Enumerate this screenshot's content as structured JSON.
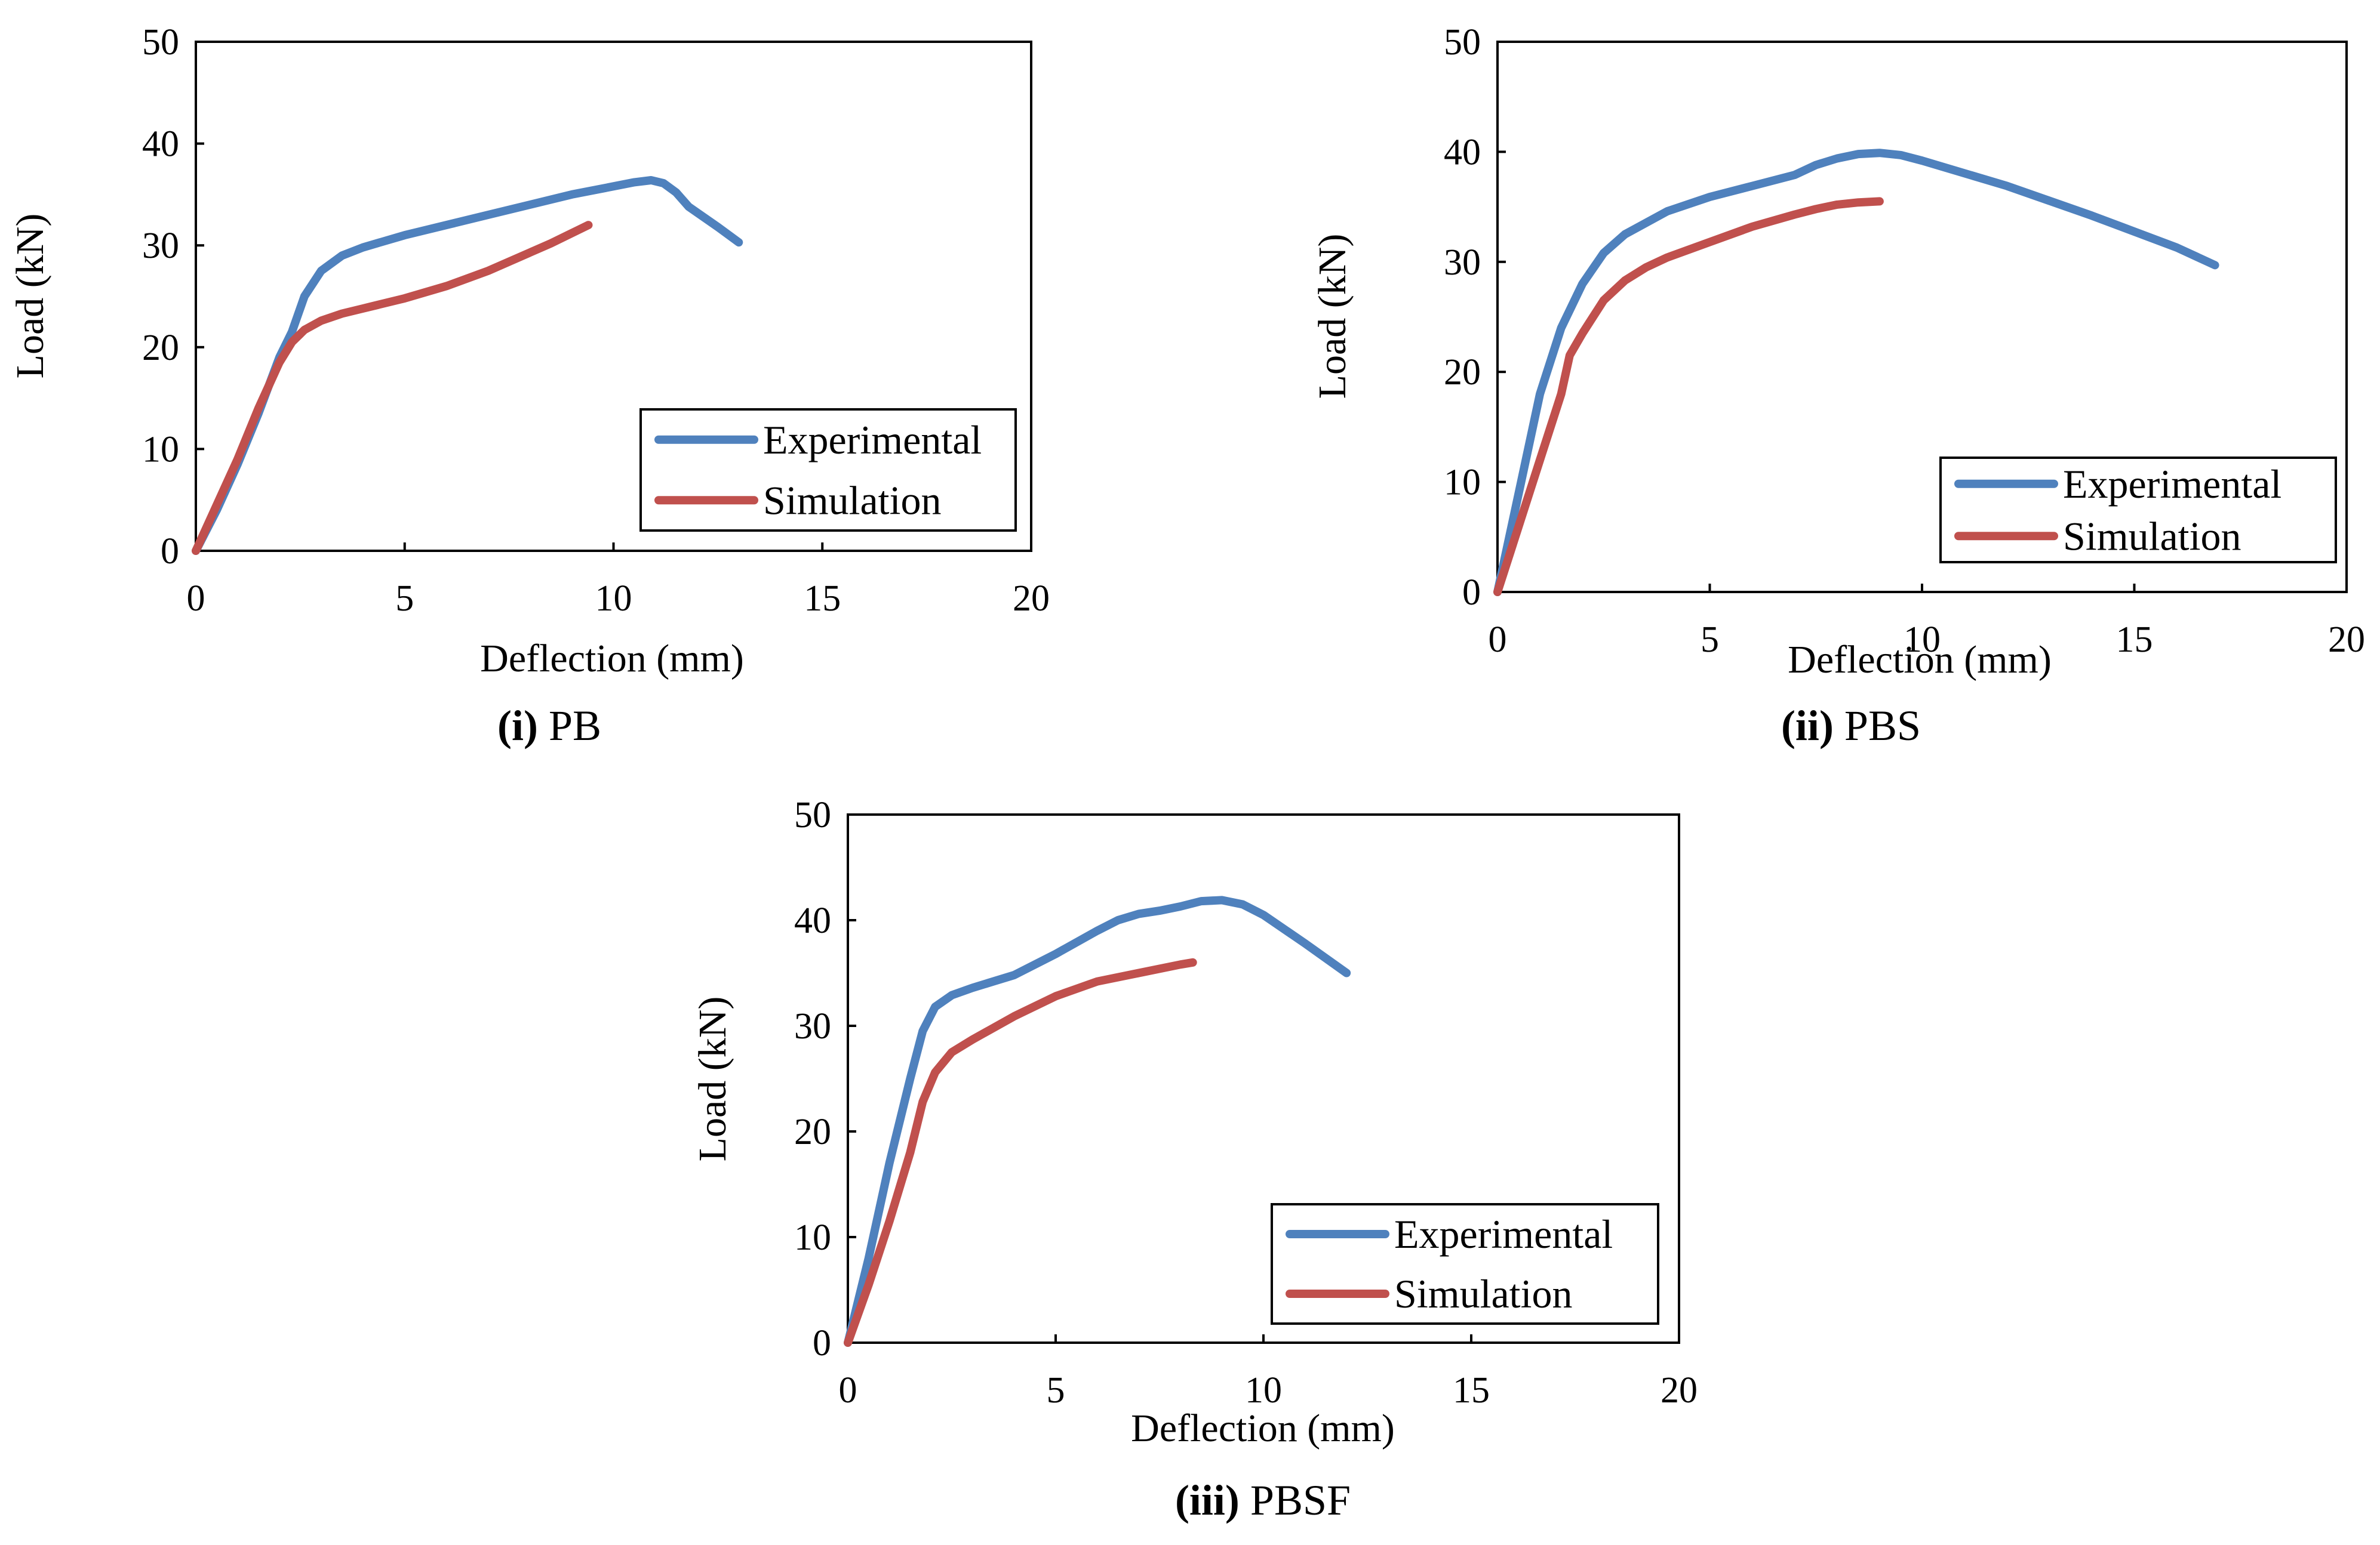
{
  "chart_data": [
    {
      "type": "line",
      "caption_label": "(i)",
      "caption_text": "PB",
      "xlabel": "Deflection (mm)",
      "ylabel": "Load (kN)",
      "xlim": [
        0,
        20
      ],
      "ylim": [
        0,
        50
      ],
      "xticks": [
        0,
        5,
        10,
        15,
        20
      ],
      "yticks": [
        0,
        10,
        20,
        30,
        40,
        50
      ],
      "grid": false,
      "legend_position": "bottom-right",
      "series": [
        {
          "name": "Experimental",
          "color": "#4f81bd",
          "x": [
            0,
            0.5,
            1.0,
            1.5,
            2.0,
            2.3,
            2.6,
            3.0,
            3.5,
            4.0,
            5.0,
            6.0,
            7.0,
            8.0,
            9.0,
            10.0,
            10.5,
            10.9,
            11.2,
            11.5,
            11.8,
            12.5,
            13.0
          ],
          "y": [
            0,
            4,
            8.5,
            13.5,
            19,
            21.5,
            25,
            27.5,
            29,
            29.8,
            31,
            32,
            33,
            34,
            35,
            35.8,
            36.2,
            36.4,
            36.1,
            35.2,
            33.8,
            31.8,
            30.3
          ]
        },
        {
          "name": "Simulation",
          "color": "#c0504d",
          "x": [
            0,
            0.5,
            1.0,
            1.5,
            2.0,
            2.3,
            2.6,
            3.0,
            3.5,
            4.0,
            5.0,
            6.0,
            7.0,
            8.0,
            8.5,
            9.0,
            9.4
          ],
          "y": [
            0,
            4.5,
            9,
            14,
            18.5,
            20.5,
            21.7,
            22.6,
            23.3,
            23.8,
            24.8,
            26,
            27.5,
            29.3,
            30.2,
            31.2,
            32
          ]
        }
      ]
    },
    {
      "type": "line",
      "caption_label": "(ii)",
      "caption_text": "PBS",
      "xlabel": "Deflection (mm)",
      "ylabel": "Load (kN)",
      "xlim": [
        0,
        20
      ],
      "ylim": [
        0,
        50
      ],
      "xticks": [
        0,
        5,
        10,
        15,
        20
      ],
      "yticks": [
        0,
        10,
        20,
        30,
        40,
        50
      ],
      "grid": false,
      "legend_position": "bottom-right",
      "series": [
        {
          "name": "Experimental",
          "color": "#4f81bd",
          "x": [
            0,
            0.5,
            1.0,
            1.5,
            2.0,
            2.5,
            3.0,
            4.0,
            5.0,
            6.0,
            7.0,
            7.5,
            8.0,
            8.5,
            9.0,
            9.5,
            10.0,
            12.0,
            14.0,
            16.0,
            16.9
          ],
          "y": [
            0,
            9,
            18,
            24,
            28,
            30.8,
            32.5,
            34.6,
            35.9,
            36.9,
            37.9,
            38.8,
            39.4,
            39.8,
            39.9,
            39.7,
            39.2,
            36.9,
            34.2,
            31.3,
            29.7
          ]
        },
        {
          "name": "Simulation",
          "color": "#c0504d",
          "x": [
            0,
            0.5,
            1.0,
            1.5,
            1.7,
            2.0,
            2.5,
            3.0,
            3.5,
            4.0,
            5.0,
            6.0,
            7.0,
            7.5,
            8.0,
            8.5,
            9.0
          ],
          "y": [
            0,
            6,
            12,
            18,
            21.5,
            23.5,
            26.5,
            28.3,
            29.5,
            30.4,
            31.8,
            33.2,
            34.3,
            34.8,
            35.2,
            35.4,
            35.5
          ]
        }
      ]
    },
    {
      "type": "line",
      "caption_label": "(iii)",
      "caption_text": "PBSF",
      "xlabel": "Deflection (mm)",
      "ylabel": "Load (kN)",
      "xlim": [
        0,
        20
      ],
      "ylim": [
        0,
        50
      ],
      "xticks": [
        0,
        5,
        10,
        15,
        20
      ],
      "yticks": [
        0,
        10,
        20,
        30,
        40,
        50
      ],
      "grid": false,
      "legend_position": "bottom-right",
      "series": [
        {
          "name": "Experimental",
          "color": "#4f81bd",
          "x": [
            0,
            0.5,
            1.0,
            1.5,
            1.8,
            2.1,
            2.5,
            3.0,
            4.0,
            5.0,
            6.0,
            6.5,
            7.0,
            7.5,
            8.0,
            8.5,
            9.0,
            9.5,
            10.0,
            11.0,
            12.0
          ],
          "y": [
            0,
            8,
            17,
            25,
            29.5,
            31.8,
            32.9,
            33.6,
            34.8,
            36.8,
            39,
            40,
            40.6,
            40.9,
            41.3,
            41.8,
            41.9,
            41.5,
            40.5,
            37.8,
            35
          ]
        },
        {
          "name": "Simulation",
          "color": "#c0504d",
          "x": [
            0,
            0.5,
            1.0,
            1.5,
            1.8,
            2.1,
            2.5,
            3.0,
            4.0,
            5.0,
            6.0,
            7.0,
            8.0,
            8.3
          ],
          "y": [
            0,
            5.5,
            11.5,
            18,
            22.8,
            25.6,
            27.5,
            28.7,
            30.9,
            32.8,
            34.2,
            35,
            35.8,
            36
          ]
        }
      ]
    }
  ]
}
